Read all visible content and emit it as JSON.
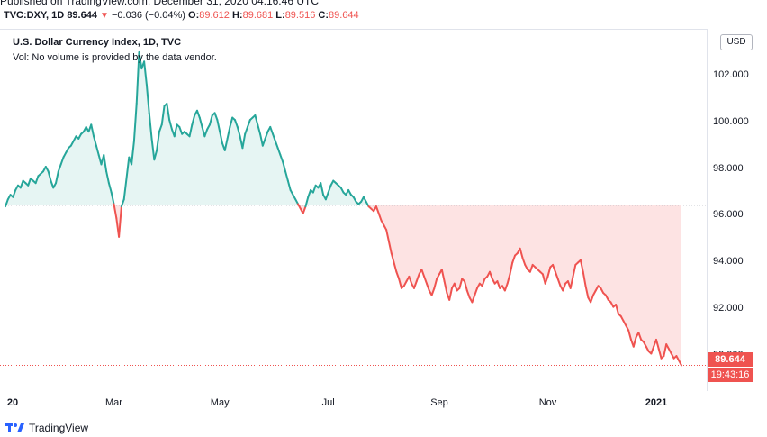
{
  "header": {
    "published": "Published on TradingView.com, December 31, 2020 04:16:46 UTC",
    "symbol": "TVC:DXY, 1D",
    "last": "89.644",
    "change": "−0.036 (−0.04%)",
    "o_label": "O:",
    "o": "89.612",
    "h_label": "H:",
    "h": "89.681",
    "l_label": "L:",
    "l": "89.516",
    "c_label": "C:",
    "c": "89.644"
  },
  "legend": {
    "title": "U.S. Dollar Currency Index, 1D, TVC",
    "volume_note": "Vol: No volume is provided by the data vendor."
  },
  "currency_button": "USD",
  "price_badge": "89.644",
  "countdown_badge": "19:43:16",
  "footer": {
    "brand": "TradingView"
  },
  "colors": {
    "up": "#26a69a",
    "down": "#ef5350",
    "up_fill": "#e6f5f3",
    "down_fill": "#fde3e3"
  },
  "chart_data": {
    "type": "area",
    "baseline": 96.45,
    "ylim": [
      88.5,
      104.0
    ],
    "y_ticks": [
      "102.000",
      "100.000",
      "98.000",
      "96.000",
      "94.000",
      "92.000",
      "90.000"
    ],
    "y_tick_values": [
      102,
      100,
      98,
      96,
      94,
      92,
      90
    ],
    "x_ticks": [
      "20",
      "Mar",
      "May",
      "Jul",
      "Sep",
      "Nov",
      "2021"
    ],
    "x_tick_index": [
      0,
      43,
      85,
      128,
      172,
      215,
      258
    ],
    "grid": false,
    "series": [
      {
        "values": [
          96.4,
          96.7,
          96.9,
          96.8,
          97.1,
          97.3,
          97.2,
          97.5,
          97.4,
          97.3,
          97.6,
          97.5,
          97.4,
          97.7,
          97.8,
          97.9,
          98.1,
          97.9,
          97.5,
          97.2,
          97.4,
          97.9,
          98.2,
          98.5,
          98.7,
          98.9,
          99.0,
          99.2,
          99.4,
          99.3,
          99.5,
          99.6,
          99.8,
          99.6,
          99.9,
          99.4,
          99.0,
          98.6,
          98.2,
          98.6,
          97.9,
          97.4,
          97.0,
          96.5,
          95.9,
          95.1,
          96.4,
          96.7,
          97.6,
          98.5,
          98.2,
          99.2,
          100.8,
          103.0,
          102.3,
          102.6,
          101.6,
          100.4,
          99.3,
          98.4,
          98.8,
          99.6,
          99.9,
          100.7,
          100.8,
          100.1,
          99.7,
          99.4,
          99.9,
          99.8,
          99.5,
          99.6,
          99.5,
          99.4,
          99.9,
          100.3,
          100.5,
          100.2,
          99.8,
          99.4,
          99.7,
          99.9,
          100.3,
          100.4,
          100.1,
          99.6,
          99.1,
          98.8,
          99.3,
          99.8,
          100.2,
          100.1,
          99.8,
          99.4,
          98.9,
          99.5,
          99.8,
          100.1,
          100.2,
          100.3,
          99.9,
          99.5,
          99.0,
          99.3,
          99.6,
          99.8,
          99.5,
          99.2,
          98.9,
          98.6,
          98.3,
          97.9,
          97.5,
          97.1,
          96.9,
          96.7,
          96.5,
          96.3,
          96.1,
          96.4,
          96.8,
          97.1,
          97.0,
          97.3,
          97.2,
          97.4,
          96.9,
          96.7,
          97.0,
          97.3,
          97.5,
          97.4,
          97.3,
          97.2,
          97.0,
          96.9,
          97.1,
          96.9,
          96.8,
          96.6,
          96.5,
          96.6,
          96.8,
          96.6,
          96.4,
          96.3,
          96.2,
          96.4,
          96.1,
          95.8,
          95.6,
          95.4,
          94.9,
          94.4,
          94.0,
          93.6,
          93.3,
          92.9,
          93.0,
          93.2,
          93.4,
          93.1,
          92.9,
          93.2,
          93.5,
          93.7,
          93.4,
          93.1,
          92.8,
          92.6,
          92.9,
          93.3,
          93.5,
          93.7,
          93.2,
          92.7,
          92.4,
          92.9,
          93.1,
          92.8,
          92.9,
          93.3,
          93.2,
          92.8,
          92.5,
          92.3,
          92.6,
          92.9,
          93.1,
          93.0,
          93.3,
          93.4,
          93.6,
          93.3,
          93.1,
          93.2,
          92.9,
          93.0,
          92.8,
          93.1,
          93.5,
          94.0,
          94.3,
          94.4,
          94.6,
          94.2,
          93.9,
          93.7,
          93.6,
          93.9,
          93.8,
          93.7,
          93.6,
          93.5,
          93.1,
          93.4,
          93.8,
          93.9,
          93.6,
          93.3,
          93.0,
          92.8,
          93.1,
          93.2,
          92.9,
          93.4,
          93.9,
          94.0,
          94.1,
          93.6,
          93.0,
          92.5,
          92.3,
          92.6,
          92.8,
          93.0,
          92.9,
          92.7,
          92.6,
          92.4,
          92.3,
          92.1,
          92.2,
          91.8,
          91.7,
          91.5,
          91.3,
          91.1,
          90.7,
          90.4,
          90.8,
          91.0,
          90.7,
          90.6,
          90.4,
          90.2,
          90.1,
          90.4,
          90.7,
          90.3,
          89.9,
          90.0,
          90.5,
          90.3,
          90.1,
          89.9,
          90.0,
          89.8,
          89.6
        ]
      }
    ]
  }
}
